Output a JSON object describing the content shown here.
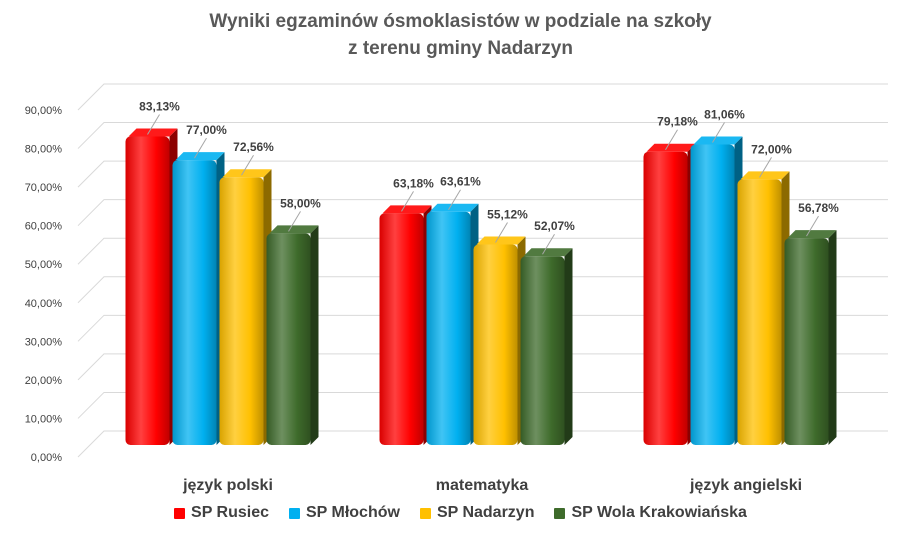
{
  "chart_data": {
    "type": "bar",
    "title_lines": [
      "Wyniki egzaminów ósmoklasistów w podziale na szkoły",
      "z terenu gminy Nadarzyn"
    ],
    "categories": [
      "język polski",
      "matematyka",
      "język angielski"
    ],
    "series": [
      {
        "name": "SP Rusiec",
        "color": "#ff0000",
        "values": [
          83.13,
          63.18,
          79.18
        ],
        "labels": [
          "83,13%",
          "63,18%",
          "79,18%"
        ]
      },
      {
        "name": "SP Młochów",
        "color": "#00b0f0",
        "values": [
          77.0,
          63.61,
          81.06
        ],
        "labels": [
          "77,00%",
          "63,61%",
          "81,06%"
        ]
      },
      {
        "name": "SP Nadarzyn",
        "color": "#ffc000",
        "values": [
          72.56,
          55.12,
          72.0
        ],
        "labels": [
          "72,56%",
          "55,12%",
          "72,00%"
        ]
      },
      {
        "name": "SP Wola Krakowiańska",
        "color": "#3e6b2b",
        "values": [
          58.0,
          52.07,
          56.78
        ],
        "labels": [
          "58,00%",
          "52,07%",
          "56,78%"
        ]
      }
    ],
    "y_ticks": [
      "0,00%",
      "10,00%",
      "20,00%",
      "30,00%",
      "40,00%",
      "50,00%",
      "60,00%",
      "70,00%",
      "80,00%",
      "90,00%"
    ],
    "ylim": [
      0,
      90
    ],
    "grid": true,
    "legend_position": "bottom"
  }
}
